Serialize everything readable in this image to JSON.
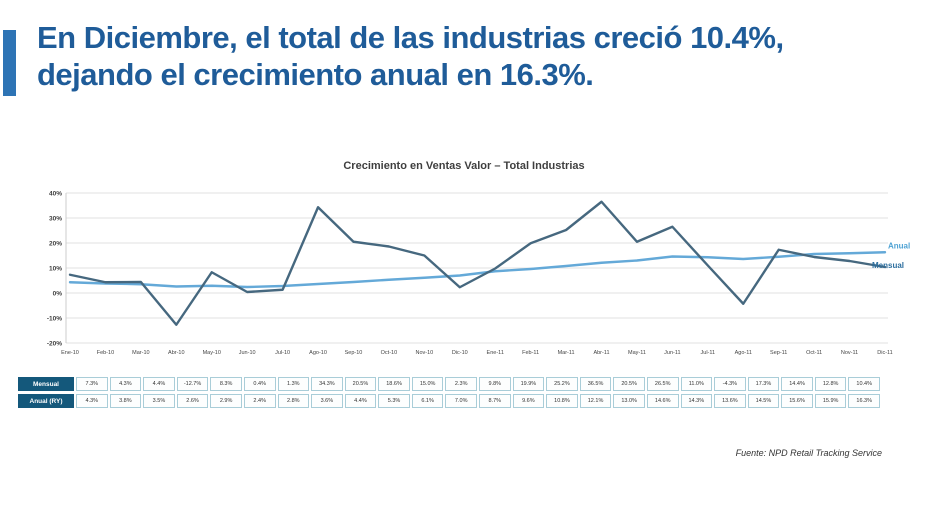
{
  "title": "En Diciembre, el total de las industrias creció 10.4%, dejando el crecimiento anual en 16.3%.",
  "colors": {
    "accent_bar": "#2E74B5",
    "title_text": "#1F5C99",
    "mensual_line": "#46687F",
    "anual_line": "#64A9D8",
    "table_header_bg": "#14587B",
    "gridline": "#e2e2e2"
  },
  "chart_data": {
    "type": "line",
    "title": "Crecimiento en Ventas Valor – Total Industrias",
    "x": [
      "Ene-10",
      "Feb-10",
      "Mar-10",
      "Abr-10",
      "May-10",
      "Jun-10",
      "Jul-10",
      "Ago-10",
      "Sep-10",
      "Oct-10",
      "Nov-10",
      "Dic-10",
      "Ene-11",
      "Feb-11",
      "Mar-11",
      "Abr-11",
      "May-11",
      "Jun-11",
      "Jul-11",
      "Ago-11",
      "Sep-11",
      "Oct-11",
      "Nov-11",
      "Dic-11"
    ],
    "series": [
      {
        "name": "Mensual",
        "color": "#46687F",
        "values": [
          7.3,
          4.3,
          4.4,
          -12.7,
          8.3,
          0.4,
          1.3,
          34.3,
          20.5,
          18.6,
          15.0,
          2.3,
          9.8,
          19.9,
          25.2,
          36.5,
          20.5,
          26.5,
          11.0,
          -4.3,
          17.3,
          14.4,
          12.8,
          10.4
        ]
      },
      {
        "name": "Anual",
        "color": "#64A9D8",
        "values": [
          4.3,
          3.8,
          3.5,
          2.6,
          2.9,
          2.4,
          2.8,
          3.6,
          4.4,
          5.3,
          6.1,
          7.0,
          8.7,
          9.6,
          10.8,
          12.1,
          13.0,
          14.6,
          14.3,
          13.6,
          14.5,
          15.6,
          15.9,
          16.3
        ]
      }
    ],
    "ylim": [
      -20,
      40
    ],
    "ytick_step": 10,
    "ytick_labels": [
      "40%",
      "30%",
      "20%",
      "10%",
      "0%",
      "-10%",
      "-20%"
    ],
    "grid": true,
    "legend_position": "right-end",
    "legend": [
      {
        "label": "Anual",
        "color": "#4FA3D4"
      },
      {
        "label": "Mensual",
        "color": "#2C6E9E"
      }
    ]
  },
  "table": {
    "rows": [
      {
        "label": "Mensual",
        "values": [
          "7.3%",
          "4.3%",
          "4.4%",
          "-12.7%",
          "8.3%",
          "0.4%",
          "1.3%",
          "34.3%",
          "20.5%",
          "18.6%",
          "15.0%",
          "2.3%",
          "9.8%",
          "19.9%",
          "25.2%",
          "36.5%",
          "20.5%",
          "26.5%",
          "11.0%",
          "-4.3%",
          "17.3%",
          "14.4%",
          "12.8%",
          "10.4%"
        ]
      },
      {
        "label": "Anual (RY)",
        "values": [
          "4.3%",
          "3.8%",
          "3.5%",
          "2.6%",
          "2.9%",
          "2.4%",
          "2.8%",
          "3.6%",
          "4.4%",
          "5.3%",
          "6.1%",
          "7.0%",
          "8.7%",
          "9.6%",
          "10.8%",
          "12.1%",
          "13.0%",
          "14.6%",
          "14.3%",
          "13.6%",
          "14.5%",
          "15.6%",
          "15.9%",
          "16.3%"
        ]
      }
    ]
  },
  "footer": {
    "source": "Fuente: NPD Retail Tracking Service"
  }
}
